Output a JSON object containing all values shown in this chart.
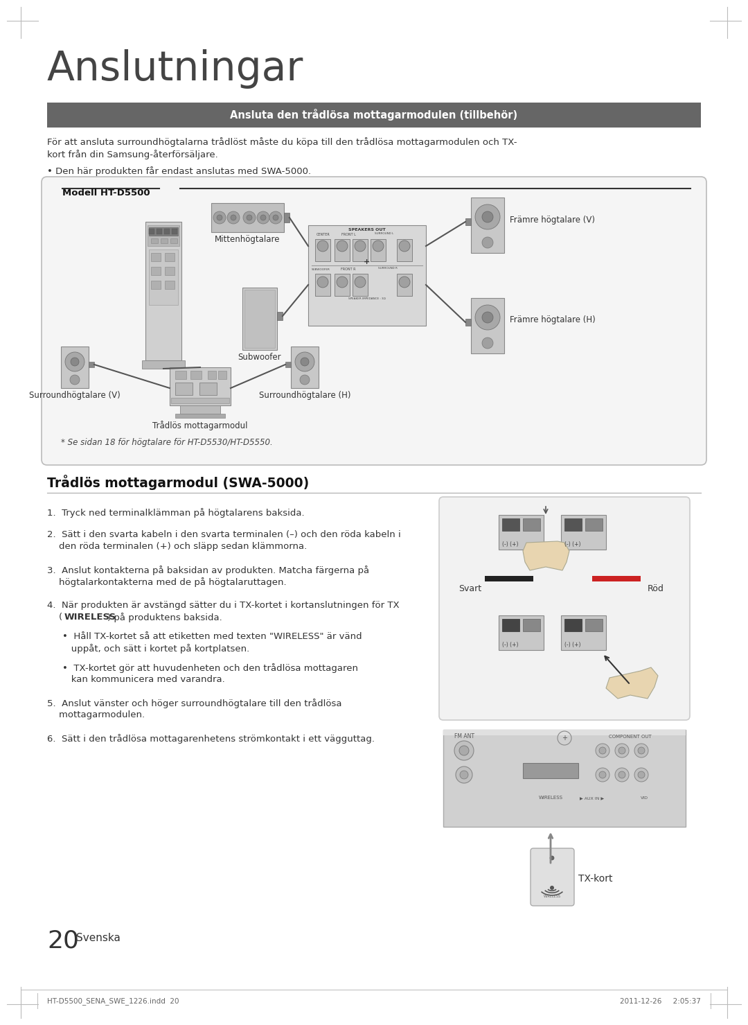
{
  "page_bg": "#ffffff",
  "title_large": "Anslutningar",
  "title_large_size": 42,
  "section_header": "Ansluta den trådlösa mottagarmodulen (tillbehör)",
  "section_header_bg": "#666666",
  "section_header_color": "#ffffff",
  "body_text1_line1": "För att ansluta surroundhögtalarna trådlöst måste du köpa till den trådlösa mottagarmodulen och TX-",
  "body_text1_line2": "kort från din Samsung-återförsäljare.",
  "bullet_text1": "• Den här produkten får endast anslutas med SWA-5000.",
  "model_label": "Modell HT-D5500",
  "diagram_labels": {
    "mittenhogt": "Mittenhögtalare",
    "subwoofer": "Subwoofer",
    "framre_v": "Främre högtalare (V)",
    "framre_h": "Främre högtalare (H)",
    "surround_v": "Surroundhögtalare (V)",
    "surround_h": "Surroundhögtalare (H)",
    "tradlos": "Trådlös mottagarmodul"
  },
  "footnote": "* Se sidan 18 för högtalare för HT-D5530/HT-D5550.",
  "section2_header": "Trådlös mottagarmodul (SWA-5000)",
  "step1": "1.  Tryck ned terminalklämman på högtalarens baksida.",
  "step2_line1": "2.  Sätt i den svarta kabeln i den svarta terminalen (–) och den röda kabeln i",
  "step2_line2": "    den röda terminalen (+) och släpp sedan klämmorna.",
  "step3_line1": "3.  Anslut kontakterna på baksidan av produkten. Matcha färgerna på",
  "step3_line2": "    högtalarkontakterna med de på högtalaruttagen.",
  "step4_line1": "4.  När produkten är avstängd sätter du i TX-kortet i kortanslutningen för TX",
  "step4_line2_pre": "    (",
  "step4_line2_bold": "WIRELESS",
  "step4_line2_post": ") på produktens baksida.",
  "bullet4_1_line1": "•  Håll TX-kortet så att etiketten med texten \"WIRELESS\" är vänd",
  "bullet4_1_line2": "   uppåt, och sätt i kortet på kortplatsen.",
  "bullet4_2_line1": "•  TX-kortet gör att huvudenheten och den trådlösa mottagaren",
  "bullet4_2_line2": "   kan kommunicera med varandra.",
  "step5_line1": "5.  Anslut vänster och höger surroundhögtalare till den trådlösa",
  "step5_line2": "    mottagarmodulen.",
  "step6": "6.  Sätt i den trådlösa mottagarenhetens strömkontakt i ett vägguttag.",
  "side_label_svart": "Svart",
  "side_label_rod": "Röd",
  "tx_label": "TX-kort",
  "page_number": "20",
  "page_number_label": "Svenska",
  "footer_left": "HT-D5500_SENA_SWE_1226.indd  20",
  "footer_right": "2011-12-26     2:05:37"
}
